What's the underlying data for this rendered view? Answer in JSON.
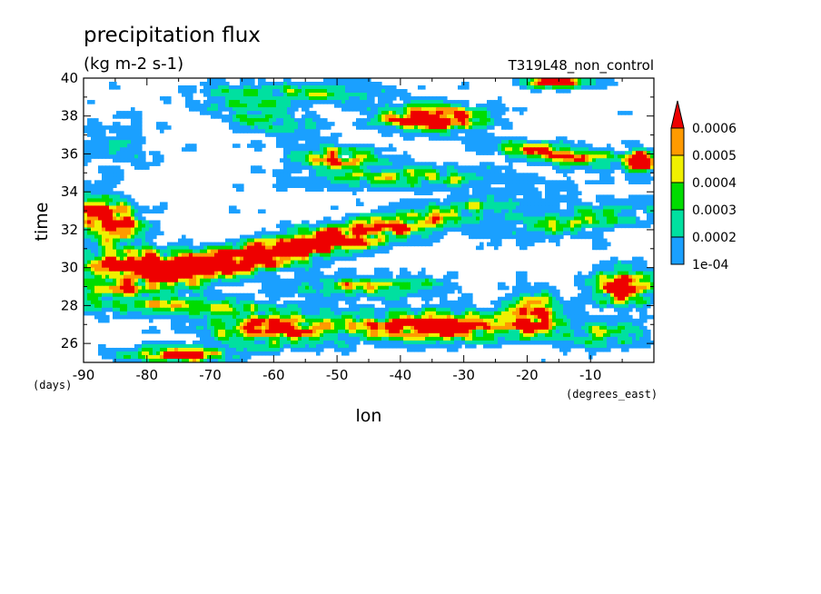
{
  "chart_data": {
    "type": "heatmap",
    "title": "precipitation flux",
    "subtitle": "(kg m-2 s-1)",
    "run_label": "T319L48_non_control",
    "xlabel": "lon",
    "ylabel": "time",
    "x_units": "(degrees_east)",
    "y_units": "(days)",
    "xlim": [
      -90,
      0
    ],
    "ylim": [
      25,
      40
    ],
    "x_ticks": [
      "-90",
      "-80",
      "-70",
      "-60",
      "-50",
      "-40",
      "-30",
      "-20",
      "-10"
    ],
    "y_ticks": [
      "26",
      "28",
      "30",
      "32",
      "34",
      "36",
      "38",
      "40"
    ],
    "grid": false,
    "legend_position": "right",
    "color_levels": [
      {
        "label": "1e-04",
        "value": 0.0001,
        "color": "#1aa0ff"
      },
      {
        "label": "0.0002",
        "value": 0.0002,
        "color": "#00e0a0"
      },
      {
        "label": "0.0003",
        "value": 0.0003,
        "color": "#00dc00"
      },
      {
        "label": "0.0004",
        "value": 0.0004,
        "color": "#f0f000"
      },
      {
        "label": "0.0005",
        "value": 0.0005,
        "color": "#ff9a00"
      },
      {
        "label": "0.0006",
        "value": 0.0006,
        "color": "#ee0000"
      }
    ],
    "features": [
      {
        "lon": -60,
        "time": 30.8,
        "width_deg": 60,
        "depth_days": 1.6,
        "slope": 0.0706,
        "peak": 0.0009
      },
      {
        "lon": -35,
        "time": 26.9,
        "width_deg": 26,
        "depth_days": 1.5,
        "slope": 0.0,
        "peak": 0.00085
      },
      {
        "lon": -80,
        "time": 30.2,
        "width_deg": 24,
        "depth_days": 1.3,
        "slope": 0.0,
        "peak": 0.0008
      },
      {
        "lon": -86,
        "time": 32.5,
        "width_deg": 10,
        "depth_days": 2.4,
        "slope": -0.08,
        "peak": 0.0008
      },
      {
        "lon": -35,
        "time": 37.9,
        "width_deg": 16,
        "depth_days": 1.4,
        "slope": 0.0,
        "peak": 0.0008
      },
      {
        "lon": -5,
        "time": 29.0,
        "width_deg": 9,
        "depth_days": 1.8,
        "slope": 0.0,
        "peak": 0.0008
      },
      {
        "lon": -19,
        "time": 27.5,
        "width_deg": 8,
        "depth_days": 2.2,
        "slope": 0.0,
        "peak": 0.0007
      },
      {
        "lon": -50,
        "time": 35.8,
        "width_deg": 12,
        "depth_days": 1.0,
        "slope": 0.0,
        "peak": 0.0006
      },
      {
        "lon": -60,
        "time": 26.8,
        "width_deg": 20,
        "depth_days": 1.8,
        "slope": 0.0,
        "peak": 0.0006
      },
      {
        "lon": -75,
        "time": 25.4,
        "width_deg": 16,
        "depth_days": 0.8,
        "slope": 0.0,
        "peak": 0.0007
      },
      {
        "lon": -15,
        "time": 36.0,
        "width_deg": 20,
        "depth_days": 1.0,
        "slope": -0.04,
        "peak": 0.0006
      },
      {
        "lon": -2,
        "time": 35.6,
        "width_deg": 5,
        "depth_days": 1.2,
        "slope": 0.0,
        "peak": 0.0008
      },
      {
        "lon": -15,
        "time": 39.8,
        "width_deg": 10,
        "depth_days": 0.6,
        "slope": 0.0,
        "peak": 0.0008
      },
      {
        "lon": -55,
        "time": 39.2,
        "width_deg": 25,
        "depth_days": 1.0,
        "slope": 0.0,
        "peak": 0.0003
      },
      {
        "lon": -85,
        "time": 36.5,
        "width_deg": 12,
        "depth_days": 3.0,
        "slope": 0.0,
        "peak": 0.00012
      },
      {
        "lon": -62,
        "time": 38.0,
        "width_deg": 18,
        "depth_days": 2.0,
        "slope": -0.1,
        "peak": 0.00025
      },
      {
        "lon": -75,
        "time": 28.0,
        "width_deg": 25,
        "depth_days": 1.2,
        "slope": 0.0,
        "peak": 0.00035
      },
      {
        "lon": -12,
        "time": 32.5,
        "width_deg": 24,
        "depth_days": 1.5,
        "slope": 0.04,
        "peak": 0.0003
      },
      {
        "lon": -40,
        "time": 34.8,
        "width_deg": 30,
        "depth_days": 1.2,
        "slope": 0.0,
        "peak": 0.00035
      },
      {
        "lon": -45,
        "time": 29.0,
        "width_deg": 24,
        "depth_days": 1.2,
        "slope": 0.0,
        "peak": 0.00035
      },
      {
        "lon": -8,
        "time": 26.5,
        "width_deg": 14,
        "depth_days": 1.5,
        "slope": 0.0,
        "peak": 0.0003
      }
    ]
  }
}
